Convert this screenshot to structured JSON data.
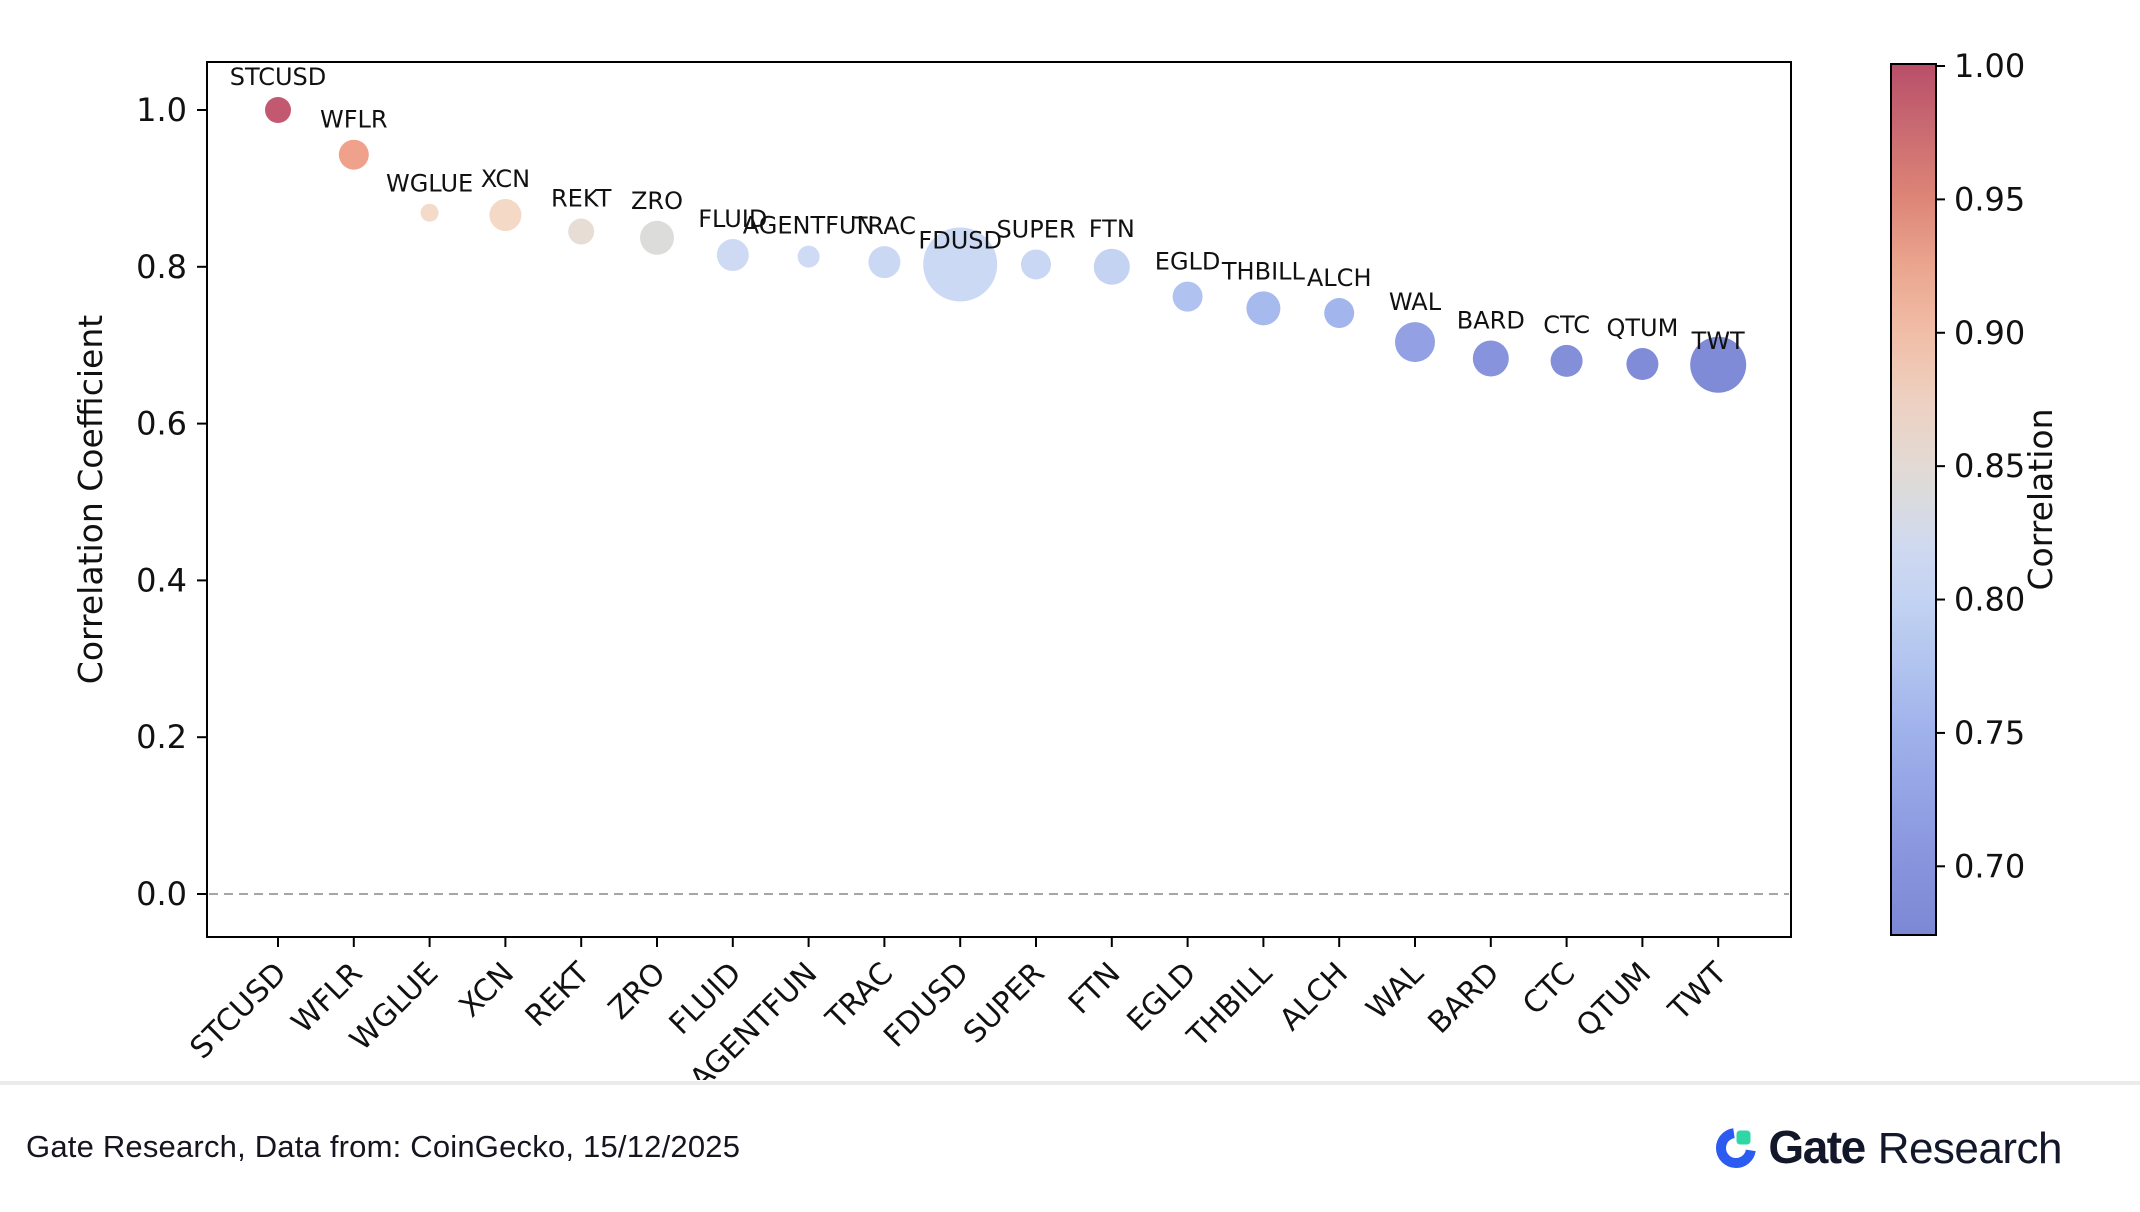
{
  "page": {
    "background": "#ffffff"
  },
  "chart_data": {
    "type": "scatter",
    "subtype": "bubble",
    "title": "",
    "xlabel": "",
    "ylabel": "Correlation Coefficient",
    "grid": false,
    "y_ticks": [
      0.0,
      0.2,
      0.4,
      0.6,
      0.8,
      1.0
    ],
    "ylim": [
      -0.055,
      1.06
    ],
    "zero_line": {
      "value": 0.0,
      "style": "dashed",
      "color": "#999999"
    },
    "categories": [
      "STCUSD",
      "WFLR",
      "WGLUE",
      "XCN",
      "REKT",
      "ZRO",
      "FLUID",
      "AGENTFUN",
      "TRAC",
      "FDUSD",
      "SUPER",
      "FTN",
      "EGLD",
      "THBILL",
      "ALCH",
      "WAL",
      "BARD",
      "CTC",
      "QTUM",
      "TWT"
    ],
    "points": [
      {
        "label": "STCUSD",
        "value": 1.0,
        "size": 13,
        "color": "#c25970"
      },
      {
        "label": "WFLR",
        "value": 0.943,
        "size": 15,
        "color": "#f0a18b"
      },
      {
        "label": "WGLUE",
        "value": 0.869,
        "size": 9,
        "color": "#f4dbc9"
      },
      {
        "label": "XCN",
        "value": 0.866,
        "size": 16,
        "color": "#f3d9c6"
      },
      {
        "label": "REKT",
        "value": 0.845,
        "size": 13,
        "color": "#e8ddd5"
      },
      {
        "label": "ZRO",
        "value": 0.837,
        "size": 17,
        "color": "#dcdcdb"
      },
      {
        "label": "FLUID",
        "value": 0.815,
        "size": 16,
        "color": "#cedaf4"
      },
      {
        "label": "AGENTFUN",
        "value": 0.813,
        "size": 11,
        "color": "#cfdbf5"
      },
      {
        "label": "TRAC",
        "value": 0.806,
        "size": 16,
        "color": "#cbd8f4"
      },
      {
        "label": "FDUSD",
        "value": 0.803,
        "size": 37,
        "color": "#cbd9f5"
      },
      {
        "label": "SUPER",
        "value": 0.803,
        "size": 15,
        "color": "#c9d6f4"
      },
      {
        "label": "FTN",
        "value": 0.8,
        "size": 18,
        "color": "#c5d3f3"
      },
      {
        "label": "EGLD",
        "value": 0.762,
        "size": 15,
        "color": "#b0c2f0"
      },
      {
        "label": "THBILL",
        "value": 0.747,
        "size": 17,
        "color": "#a6baee"
      },
      {
        "label": "ALCH",
        "value": 0.741,
        "size": 15,
        "color": "#a2b5ec"
      },
      {
        "label": "WAL",
        "value": 0.704,
        "size": 20,
        "color": "#93a0e4"
      },
      {
        "label": "BARD",
        "value": 0.683,
        "size": 18,
        "color": "#8793dc"
      },
      {
        "label": "CTC",
        "value": 0.68,
        "size": 16,
        "color": "#848fda"
      },
      {
        "label": "QTUM",
        "value": 0.676,
        "size": 16,
        "color": "#818cd8"
      },
      {
        "label": "TWT",
        "value": 0.675,
        "size": 28,
        "color": "#808bd7"
      }
    ],
    "colorbar": {
      "label": "Correlation",
      "vmin": 0.675,
      "vmax": 1.0,
      "tick_labels": [
        "1.00",
        "0.95",
        "0.90",
        "0.85",
        "0.80",
        "0.75",
        "0.70"
      ],
      "gradient": [
        {
          "v": 1.0,
          "c": "#b84f68"
        },
        {
          "v": 0.975,
          "c": "#ca6b72"
        },
        {
          "v": 0.95,
          "c": "#dd8577"
        },
        {
          "v": 0.925,
          "c": "#eaa58e"
        },
        {
          "v": 0.9,
          "c": "#f1bda6"
        },
        {
          "v": 0.875,
          "c": "#eed0c1"
        },
        {
          "v": 0.85,
          "c": "#e2dad4"
        },
        {
          "v": 0.8375,
          "c": "#dadbde"
        },
        {
          "v": 0.82,
          "c": "#cfd9f0"
        },
        {
          "v": 0.8,
          "c": "#c3d3f2"
        },
        {
          "v": 0.775,
          "c": "#b1c3ef"
        },
        {
          "v": 0.75,
          "c": "#9fb1ea"
        },
        {
          "v": 0.725,
          "c": "#93a2e4"
        },
        {
          "v": 0.7,
          "c": "#8793dc"
        },
        {
          "v": 0.675,
          "c": "#7d88d4"
        }
      ]
    }
  },
  "footer": {
    "source_text": "Gate Research, Data from: CoinGecko, 15/12/2025",
    "divider_color": "#ebebeb",
    "logo": {
      "bold_text": "Gate",
      "regular_text": "Research",
      "text_color": "#13172a",
      "mark_blue": "#2b5bf0",
      "mark_green": "#2fd7a4"
    }
  }
}
